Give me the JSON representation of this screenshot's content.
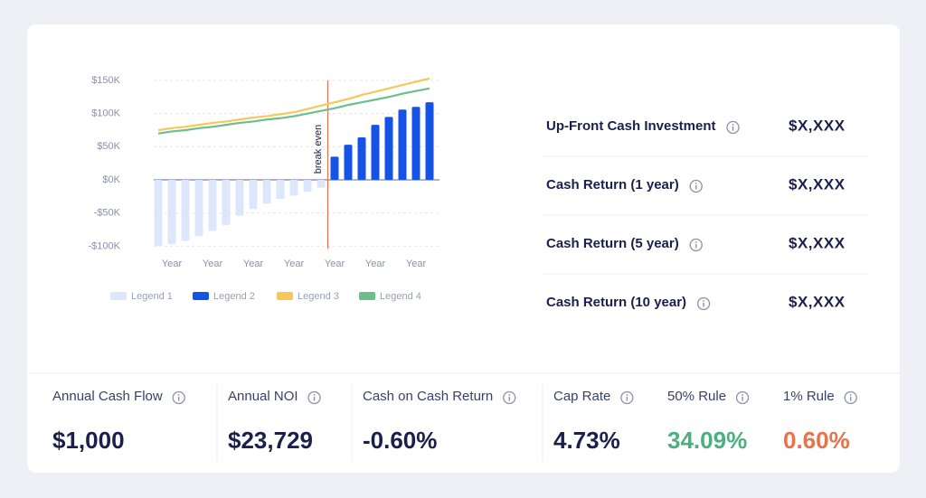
{
  "chart_data": {
    "type": "bar",
    "categories": [
      null,
      "Year",
      null,
      null,
      "Year",
      null,
      null,
      "Year",
      null,
      null,
      "Year",
      null,
      null,
      "Year",
      null,
      null,
      "Year",
      null,
      null,
      "Year",
      null
    ],
    "series": [
      {
        "name": "Legend 1",
        "type": "bar",
        "color": "#dde7fb",
        "values": [
          -100,
          -97,
          -92,
          -85,
          -77,
          -68,
          -54,
          -44,
          -36,
          -29,
          -24,
          -18,
          -12,
          null,
          null,
          null,
          null,
          null,
          null,
          null,
          null
        ]
      },
      {
        "name": "Legend 2",
        "type": "bar",
        "color": "#1553e6",
        "values": [
          null,
          null,
          null,
          null,
          null,
          null,
          null,
          null,
          null,
          null,
          null,
          null,
          null,
          35,
          53,
          64,
          83,
          95,
          106,
          110,
          117
        ]
      },
      {
        "name": "Legend 3",
        "type": "line",
        "color": "#f5c85a",
        "values": [
          75,
          78,
          80,
          83,
          86,
          88,
          91,
          94,
          96,
          99,
          102,
          107,
          112,
          117,
          122,
          128,
          133,
          138,
          143,
          148,
          153
        ]
      },
      {
        "name": "Legend 4",
        "type": "line",
        "color": "#6cbf8a",
        "values": [
          70,
          73,
          75,
          78,
          80,
          83,
          86,
          88,
          91,
          93,
          96,
          100,
          104,
          108,
          113,
          117,
          121,
          125,
          130,
          134,
          138
        ]
      }
    ],
    "annotations": [
      {
        "text": "break even"
      }
    ],
    "ylim": [
      -110,
      155
    ],
    "yticks": [
      {
        "value": -100,
        "label": "-$100K"
      },
      {
        "value": -50,
        "label": "-$50K"
      },
      {
        "value": 0,
        "label": "$0K"
      },
      {
        "value": 50,
        "label": "$50K"
      },
      {
        "value": 100,
        "label": "$100K"
      },
      {
        "value": 150,
        "label": "$150K"
      }
    ],
    "grid": true
  },
  "summary": {
    "rows": [
      {
        "label": "Up-Front Cash Investment",
        "value": "$X,XXX"
      },
      {
        "label": "Cash Return (1 year)",
        "value": "$X,XXX"
      },
      {
        "label": "Cash Return (5 year)",
        "value": "$X,XXX"
      },
      {
        "label": "Cash Return (10 year)",
        "value": "$X,XXX"
      }
    ]
  },
  "metrics": [
    {
      "label": "Annual Cash Flow",
      "value": "$1,000",
      "color": "#1b1f4b"
    },
    {
      "label": "Annual NOI",
      "value": "$23,729",
      "color": "#1b1f4b"
    },
    {
      "label": "Cash on Cash Return",
      "value": "-0.60%",
      "color": "#1b1f4b"
    },
    {
      "label": "Cap Rate",
      "value": "4.73%",
      "color": "#1b1f4b"
    },
    {
      "label": "50% Rule",
      "value": "34.09%",
      "color": "#4caf7d"
    },
    {
      "label": "1% Rule",
      "value": "0.60%",
      "color": "#e8734a"
    }
  ]
}
